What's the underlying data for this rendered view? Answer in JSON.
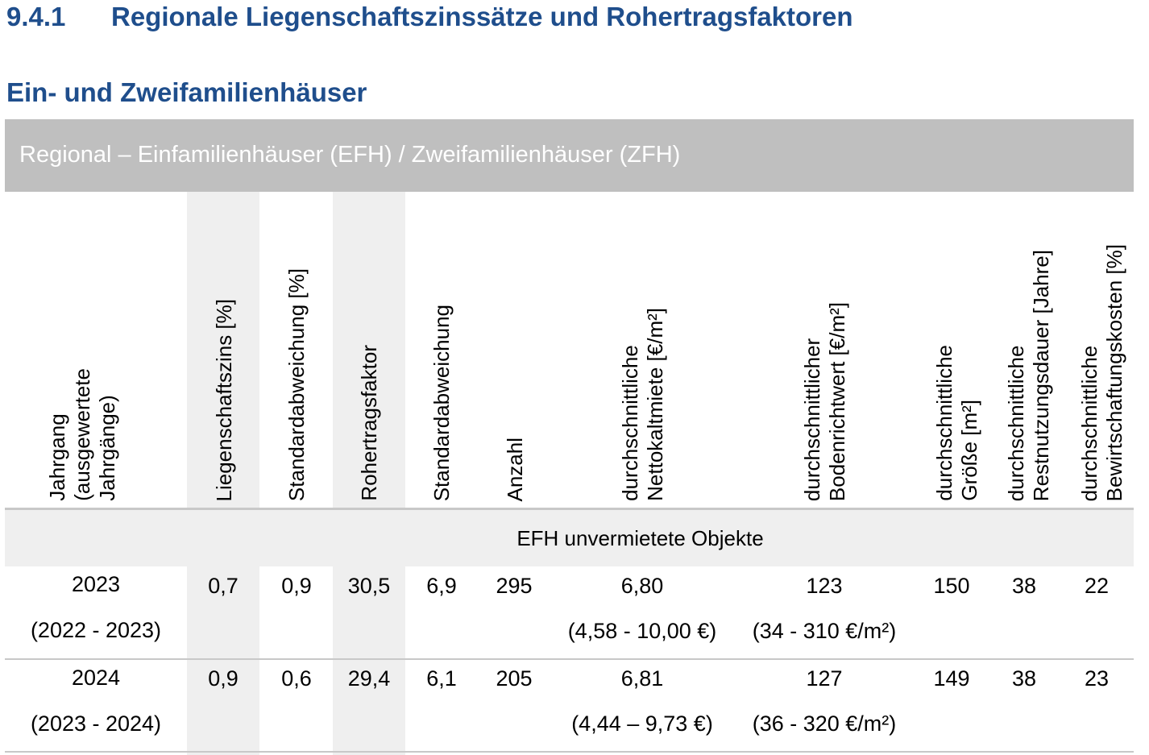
{
  "heading": {
    "number": "9.4.1",
    "title": "Regionale Liegenschaftszinssätze und Rohertragsfaktoren"
  },
  "subheading": "Ein- und Zweifamilienhäuser",
  "banner": "Regional – Einfamilienhäuser (EFH) / Zweifamilienhäuser (ZFH)",
  "columns": {
    "jahrgang": [
      "Jahrgang",
      "(ausgewertete",
      "Jahrgänge)"
    ],
    "lz": [
      "Liegenschaftszins [%]"
    ],
    "sd1": [
      "Standardabweichung [%]"
    ],
    "rf": [
      "Rohertragsfaktor"
    ],
    "sd2": [
      "Standardabweichung"
    ],
    "anzahl": [
      "Anzahl"
    ],
    "miete": [
      "durchschnittliche",
      "Nettokaltmiete [€/m²]"
    ],
    "brw": [
      "durchschnittlicher",
      "Bodenrichtwert [€/m²]"
    ],
    "groesse": [
      "durchschnittliche",
      "Größe [m²]"
    ],
    "rnd": [
      "durchschnittliche",
      "Restnutzungsdauer [Jahre]"
    ],
    "bwk": [
      "durchschnittliche",
      "Bewirtschaftungskosten [%]"
    ]
  },
  "group_label": "EFH unvermietete Objekte",
  "rows": [
    {
      "year": "2023",
      "range": "(2022 - 2023)",
      "lz": "0,7",
      "sd1": "0,9",
      "rf": "30,5",
      "sd2": "6,9",
      "anzahl": "295",
      "miete": "6,80",
      "miete_range": "(4,58 - 10,00 €)",
      "brw": "123",
      "brw_range": "(34 - 310 €/m²)",
      "groesse": "150",
      "rnd": "38",
      "bwk": "22"
    },
    {
      "year": "2024",
      "range": "(2023 - 2024)",
      "lz": "0,9",
      "sd1": "0,6",
      "rf": "29,4",
      "sd2": "6,1",
      "anzahl": "205",
      "miete": "6,81",
      "miete_range": "(4,44 – 9,73 €)",
      "brw": "127",
      "brw_range": "(36 - 320 €/m²)",
      "groesse": "149",
      "rnd": "38",
      "bwk": "23"
    }
  ]
}
